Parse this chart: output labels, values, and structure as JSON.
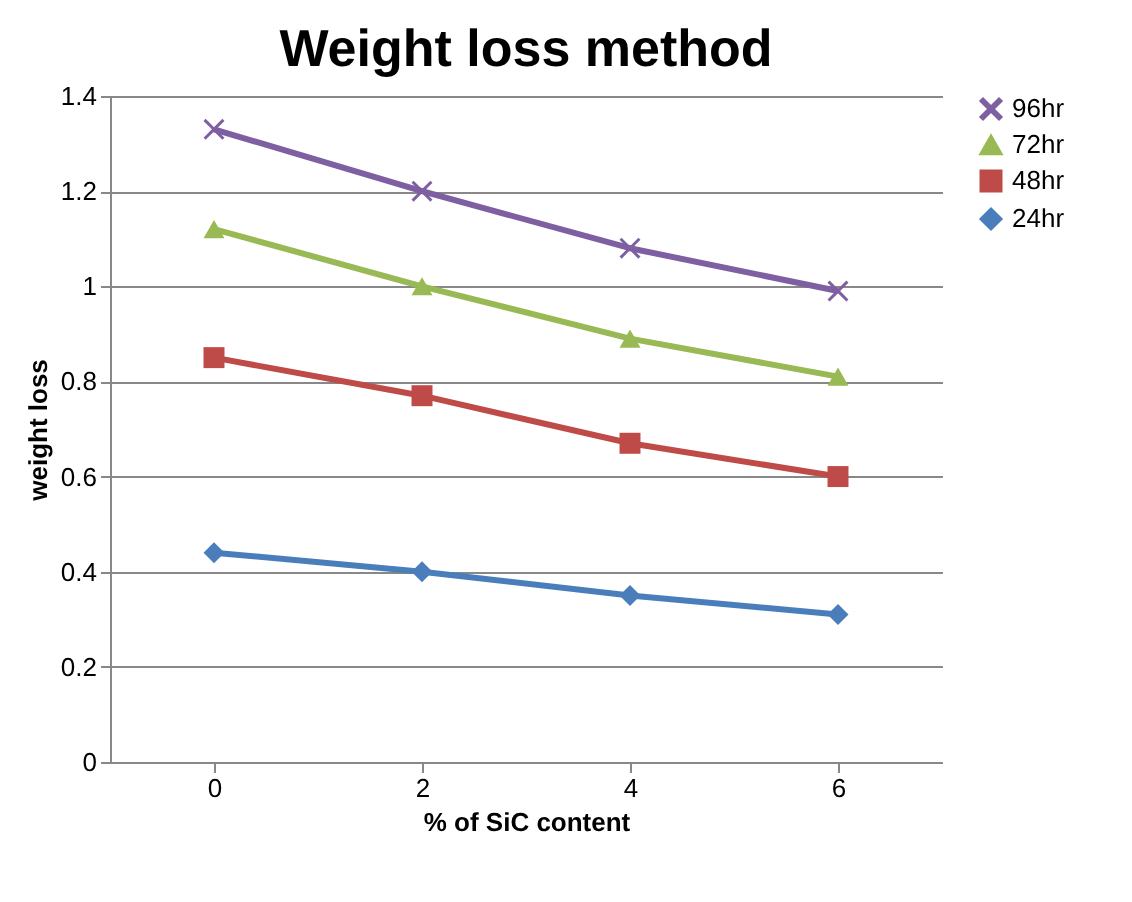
{
  "chart_data": {
    "type": "line",
    "title": "Weight loss method",
    "xlabel": "% of SiC content",
    "ylabel": "weight loss",
    "categories": [
      "0",
      "2",
      "4",
      "6"
    ],
    "series": [
      {
        "name": "96hr",
        "color": "#7e5fa2",
        "marker": "cross",
        "values": [
          1.33,
          1.2,
          1.08,
          0.99
        ]
      },
      {
        "name": "72hr",
        "color": "#98b954",
        "marker": "triangle",
        "values": [
          1.12,
          1.0,
          0.89,
          0.81
        ]
      },
      {
        "name": "48hr",
        "color": "#be4b48",
        "marker": "square",
        "values": [
          0.85,
          0.77,
          0.67,
          0.6
        ]
      },
      {
        "name": "24hr",
        "color": "#4a7ebb",
        "marker": "diamond",
        "values": [
          0.44,
          0.4,
          0.35,
          0.31
        ]
      }
    ],
    "ylim": [
      0,
      1.4
    ],
    "yticks": [
      0,
      0.2,
      0.4,
      0.6,
      0.8,
      1,
      1.2,
      1.4
    ],
    "grid": "y",
    "legend": "right",
    "line_style": "solid"
  }
}
